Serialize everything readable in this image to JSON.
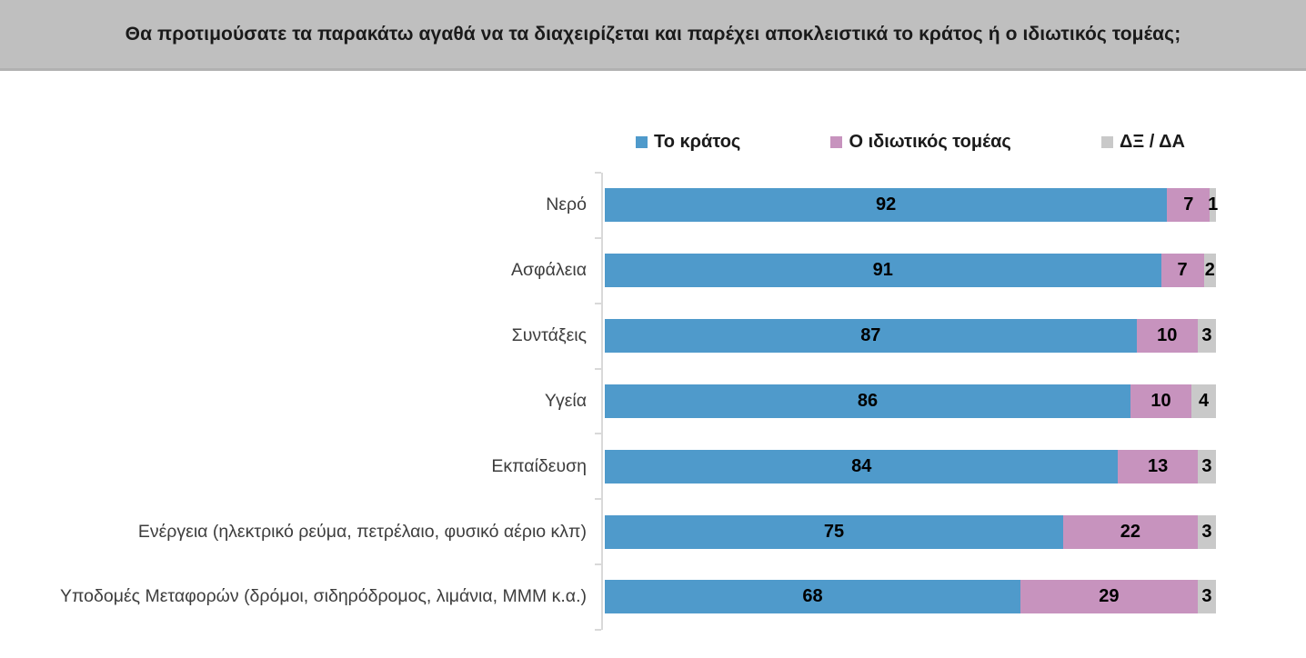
{
  "title": "Θα προτιμούσατε τα παρακάτω αγαθά να τα διαχειρίζεται και παρέχει αποκλειστικά το κράτος ή ο ιδιωτικός τομέας;",
  "chart_data": {
    "type": "bar",
    "orientation": "horizontal",
    "stacked": true,
    "unit": "percent",
    "xlim": [
      0,
      100
    ],
    "grid": false,
    "legend_position": "top",
    "value_labels": "inside-center",
    "categories": [
      "Νερό",
      "Ασφάλεια",
      "Συντάξεις",
      "Υγεία",
      "Εκπαίδευση",
      "Ενέργεια (ηλεκτρικό ρεύμα, πετρέλαιο, φυσικό αέριο κλπ)",
      "Υποδομές Μεταφορών (δρόμοι, σιδηρόδρομος, λιμάνια, ΜΜΜ κ.α.)"
    ],
    "series": [
      {
        "name": "Το κράτος",
        "color": "#4F9ACB",
        "values": [
          92,
          91,
          87,
          86,
          84,
          75,
          68
        ]
      },
      {
        "name": "Ο ιδιωτικός τομέας",
        "color": "#C793BE",
        "values": [
          7,
          7,
          10,
          10,
          13,
          22,
          29
        ]
      },
      {
        "name": "ΔΞ / ΔΑ",
        "color": "#C9C9C9",
        "values": [
          1,
          2,
          3,
          4,
          3,
          3,
          3
        ]
      }
    ]
  },
  "colors": {
    "background": "#FFFFFF",
    "banner_bg": "#BFBFBF",
    "banner_edge": "#B1B1B1",
    "axis_line": "#D9D9D9",
    "category_text": "#3D3D3D",
    "value_text": "#000000",
    "title_text": "#1A1A1A"
  }
}
